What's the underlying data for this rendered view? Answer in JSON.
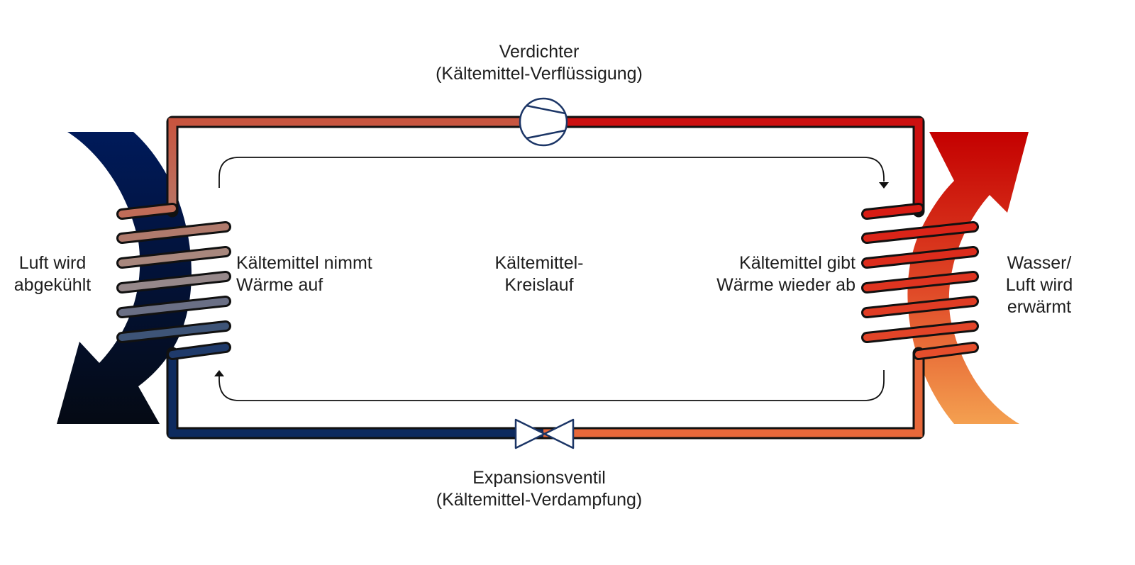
{
  "labels": {
    "compressor_line1": "Verdichter",
    "compressor_line2": "(Kältemittel-Verflüssigung)",
    "valve_line1": "Expansionsventil",
    "valve_line2": "(Kältemittel-Verdampfung)",
    "left_outer_line1": "Luft wird",
    "left_outer_line2": "abgekühlt",
    "left_inner_line1": "Kältemittel nimmt",
    "left_inner_line2": "Wärme auf",
    "center_line1": "Kältemittel-",
    "center_line2": "Kreislauf",
    "right_inner_line1": "Kältemittel gibt",
    "right_inner_line2": "Wärme wieder ab",
    "right_outer_line1": "Wasser/",
    "right_outer_line2": "Luft wird",
    "right_outer_line3": "erwärmt"
  },
  "colors": {
    "cold_pipe": "#0d2a5e",
    "warm_pipe_left": "#c8553f",
    "hot_pipe": "#cc1010",
    "warm_pipe_right": "#e8683a",
    "cold_air_arrow": "#0a1430",
    "hot_air_arrow": "#c40000",
    "warm_air_arrow": "#f4a050"
  }
}
